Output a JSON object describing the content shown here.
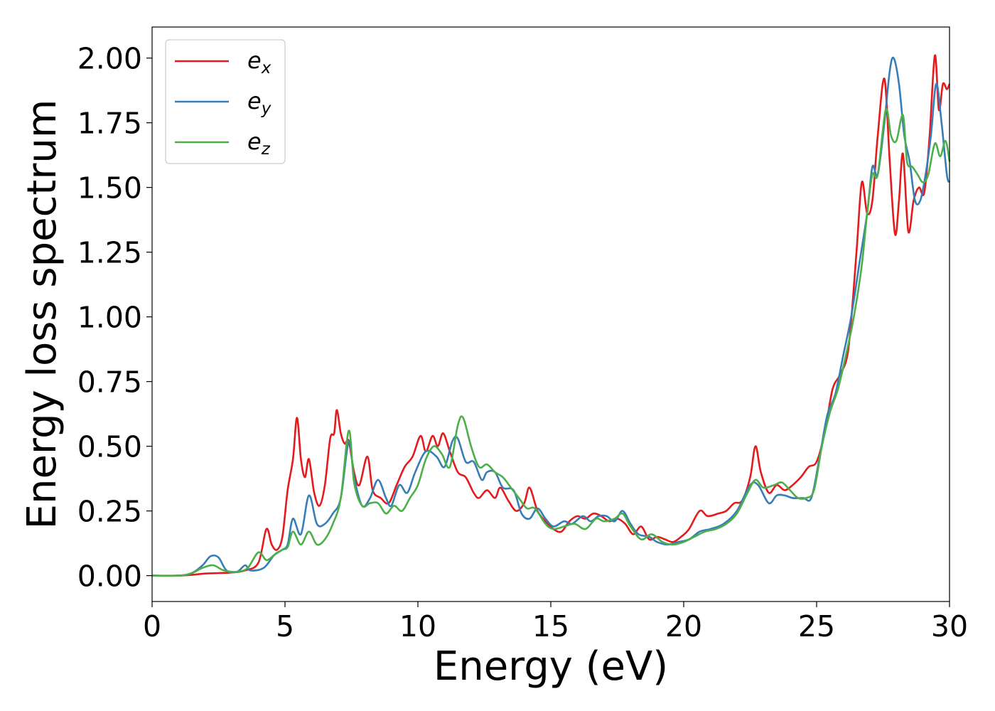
{
  "chart_data": {
    "type": "line",
    "xlabel": "Energy (eV)",
    "ylabel": "Energy loss spectrum",
    "xlim": [
      0,
      30
    ],
    "ylim": [
      -0.1,
      2.12
    ],
    "xticks": [
      "0",
      "5",
      "10",
      "15",
      "20",
      "25",
      "30"
    ],
    "yticks": [
      "0.00",
      "0.25",
      "0.50",
      "0.75",
      "1.00",
      "1.25",
      "1.50",
      "1.75",
      "2.00"
    ],
    "legend_position": "top-left",
    "grid": false,
    "series": [
      {
        "name": "e",
        "subscript": "x",
        "color": "#e41a1c",
        "points": [
          [
            0,
            0
          ],
          [
            1,
            0
          ],
          [
            1.5,
            0.003
          ],
          [
            2,
            0.008
          ],
          [
            2.5,
            0.01
          ],
          [
            3,
            0.012
          ],
          [
            3.5,
            0.02
          ],
          [
            4,
            0.05
          ],
          [
            4.3,
            0.18
          ],
          [
            4.5,
            0.12
          ],
          [
            4.7,
            0.1
          ],
          [
            4.9,
            0.15
          ],
          [
            5.1,
            0.33
          ],
          [
            5.3,
            0.45
          ],
          [
            5.45,
            0.61
          ],
          [
            5.6,
            0.45
          ],
          [
            5.75,
            0.38
          ],
          [
            5.9,
            0.45
          ],
          [
            6.1,
            0.32
          ],
          [
            6.3,
            0.27
          ],
          [
            6.5,
            0.35
          ],
          [
            6.7,
            0.53
          ],
          [
            6.85,
            0.55
          ],
          [
            6.95,
            0.64
          ],
          [
            7.1,
            0.55
          ],
          [
            7.25,
            0.51
          ],
          [
            7.4,
            0.52
          ],
          [
            7.6,
            0.4
          ],
          [
            7.8,
            0.35
          ],
          [
            8.1,
            0.46
          ],
          [
            8.3,
            0.33
          ],
          [
            8.6,
            0.3
          ],
          [
            8.9,
            0.28
          ],
          [
            9.2,
            0.35
          ],
          [
            9.5,
            0.42
          ],
          [
            9.8,
            0.46
          ],
          [
            10.1,
            0.54
          ],
          [
            10.3,
            0.48
          ],
          [
            10.55,
            0.54
          ],
          [
            10.75,
            0.5
          ],
          [
            10.95,
            0.55
          ],
          [
            11.2,
            0.48
          ],
          [
            11.5,
            0.4
          ],
          [
            11.8,
            0.38
          ],
          [
            12.1,
            0.32
          ],
          [
            12.3,
            0.3
          ],
          [
            12.6,
            0.33
          ],
          [
            12.9,
            0.3
          ],
          [
            13.1,
            0.34
          ],
          [
            13.4,
            0.29
          ],
          [
            13.7,
            0.25
          ],
          [
            14,
            0.28
          ],
          [
            14.2,
            0.34
          ],
          [
            14.5,
            0.25
          ],
          [
            14.8,
            0.21
          ],
          [
            15.1,
            0.18
          ],
          [
            15.4,
            0.17
          ],
          [
            15.7,
            0.21
          ],
          [
            16,
            0.23
          ],
          [
            16.3,
            0.22
          ],
          [
            16.6,
            0.24
          ],
          [
            16.9,
            0.23
          ],
          [
            17.2,
            0.21
          ],
          [
            17.5,
            0.22
          ],
          [
            17.8,
            0.2
          ],
          [
            18.1,
            0.16
          ],
          [
            18.4,
            0.19
          ],
          [
            18.7,
            0.14
          ],
          [
            19.0,
            0.15
          ],
          [
            19.3,
            0.14
          ],
          [
            19.6,
            0.13
          ],
          [
            19.9,
            0.15
          ],
          [
            20.2,
            0.18
          ],
          [
            20.6,
            0.25
          ],
          [
            20.9,
            0.23
          ],
          [
            21.3,
            0.24
          ],
          [
            21.6,
            0.25
          ],
          [
            21.9,
            0.28
          ],
          [
            22.2,
            0.29
          ],
          [
            22.5,
            0.38
          ],
          [
            22.7,
            0.5
          ],
          [
            22.9,
            0.4
          ],
          [
            23.2,
            0.32
          ],
          [
            23.5,
            0.35
          ],
          [
            23.8,
            0.33
          ],
          [
            24.1,
            0.35
          ],
          [
            24.4,
            0.38
          ],
          [
            24.7,
            0.42
          ],
          [
            25.0,
            0.44
          ],
          [
            25.3,
            0.55
          ],
          [
            25.6,
            0.72
          ],
          [
            25.9,
            0.78
          ],
          [
            26.2,
            0.88
          ],
          [
            26.5,
            1.25
          ],
          [
            26.7,
            1.52
          ],
          [
            26.9,
            1.4
          ],
          [
            27.1,
            1.45
          ],
          [
            27.3,
            1.7
          ],
          [
            27.55,
            1.92
          ],
          [
            27.75,
            1.6
          ],
          [
            27.95,
            1.32
          ],
          [
            28.1,
            1.45
          ],
          [
            28.25,
            1.63
          ],
          [
            28.45,
            1.33
          ],
          [
            28.65,
            1.45
          ],
          [
            28.85,
            1.5
          ],
          [
            29.05,
            1.48
          ],
          [
            29.25,
            1.7
          ],
          [
            29.45,
            2.01
          ],
          [
            29.6,
            1.8
          ],
          [
            29.75,
            1.9
          ],
          [
            29.9,
            1.88
          ],
          [
            30,
            1.9
          ]
        ]
      },
      {
        "name": "e",
        "subscript": "y",
        "color": "#377eb8",
        "points": [
          [
            0,
            0
          ],
          [
            1,
            0
          ],
          [
            1.5,
            0.01
          ],
          [
            1.9,
            0.04
          ],
          [
            2.2,
            0.075
          ],
          [
            2.5,
            0.07
          ],
          [
            2.8,
            0.02
          ],
          [
            3.2,
            0.015
          ],
          [
            3.5,
            0.04
          ],
          [
            3.7,
            0.02
          ],
          [
            4.2,
            0.03
          ],
          [
            4.6,
            0.08
          ],
          [
            4.9,
            0.1
          ],
          [
            5.1,
            0.12
          ],
          [
            5.3,
            0.22
          ],
          [
            5.6,
            0.16
          ],
          [
            5.9,
            0.31
          ],
          [
            6.2,
            0.2
          ],
          [
            6.5,
            0.2
          ],
          [
            6.8,
            0.24
          ],
          [
            7.1,
            0.3
          ],
          [
            7.4,
            0.52
          ],
          [
            7.6,
            0.38
          ],
          [
            7.9,
            0.27
          ],
          [
            8.2,
            0.3
          ],
          [
            8.5,
            0.37
          ],
          [
            8.8,
            0.3
          ],
          [
            9.0,
            0.27
          ],
          [
            9.3,
            0.35
          ],
          [
            9.6,
            0.32
          ],
          [
            9.9,
            0.4
          ],
          [
            10.3,
            0.48
          ],
          [
            10.7,
            0.46
          ],
          [
            11.0,
            0.42
          ],
          [
            11.3,
            0.52
          ],
          [
            11.5,
            0.53
          ],
          [
            11.8,
            0.44
          ],
          [
            12.1,
            0.44
          ],
          [
            12.4,
            0.37
          ],
          [
            12.6,
            0.4
          ],
          [
            12.9,
            0.4
          ],
          [
            13.2,
            0.34
          ],
          [
            13.6,
            0.33
          ],
          [
            13.9,
            0.24
          ],
          [
            14.2,
            0.22
          ],
          [
            14.5,
            0.26
          ],
          [
            14.8,
            0.22
          ],
          [
            15.1,
            0.19
          ],
          [
            15.5,
            0.21
          ],
          [
            15.8,
            0.2
          ],
          [
            16.2,
            0.23
          ],
          [
            16.5,
            0.21
          ],
          [
            16.8,
            0.23
          ],
          [
            17.1,
            0.23
          ],
          [
            17.4,
            0.21
          ],
          [
            17.7,
            0.25
          ],
          [
            18.0,
            0.2
          ],
          [
            18.3,
            0.16
          ],
          [
            18.7,
            0.15
          ],
          [
            19.0,
            0.13
          ],
          [
            19.4,
            0.12
          ],
          [
            19.8,
            0.13
          ],
          [
            20.2,
            0.14
          ],
          [
            20.6,
            0.17
          ],
          [
            21.0,
            0.18
          ],
          [
            21.5,
            0.2
          ],
          [
            22.0,
            0.25
          ],
          [
            22.5,
            0.35
          ],
          [
            22.8,
            0.35
          ],
          [
            23.2,
            0.28
          ],
          [
            23.5,
            0.31
          ],
          [
            23.8,
            0.31
          ],
          [
            24.1,
            0.3
          ],
          [
            24.5,
            0.3
          ],
          [
            24.8,
            0.3
          ],
          [
            25.1,
            0.45
          ],
          [
            25.4,
            0.62
          ],
          [
            25.7,
            0.7
          ],
          [
            26.0,
            0.85
          ],
          [
            26.3,
            1.0
          ],
          [
            26.6,
            1.2
          ],
          [
            26.9,
            1.4
          ],
          [
            27.1,
            1.58
          ],
          [
            27.3,
            1.55
          ],
          [
            27.55,
            1.75
          ],
          [
            27.75,
            1.95
          ],
          [
            27.9,
            2.0
          ],
          [
            28.1,
            1.9
          ],
          [
            28.3,
            1.7
          ],
          [
            28.5,
            1.6
          ],
          [
            28.7,
            1.45
          ],
          [
            28.9,
            1.45
          ],
          [
            29.1,
            1.55
          ],
          [
            29.3,
            1.7
          ],
          [
            29.5,
            1.9
          ],
          [
            29.7,
            1.75
          ],
          [
            29.9,
            1.55
          ],
          [
            30,
            1.52
          ]
        ]
      },
      {
        "name": "e",
        "subscript": "z",
        "color": "#4daf4a",
        "points": [
          [
            0,
            0
          ],
          [
            1,
            0
          ],
          [
            1.5,
            0.01
          ],
          [
            1.9,
            0.03
          ],
          [
            2.3,
            0.04
          ],
          [
            2.7,
            0.02
          ],
          [
            3.2,
            0.015
          ],
          [
            3.6,
            0.03
          ],
          [
            4.0,
            0.09
          ],
          [
            4.3,
            0.06
          ],
          [
            4.6,
            0.08
          ],
          [
            4.9,
            0.1
          ],
          [
            5.1,
            0.11
          ],
          [
            5.3,
            0.17
          ],
          [
            5.6,
            0.12
          ],
          [
            5.9,
            0.17
          ],
          [
            6.2,
            0.12
          ],
          [
            6.5,
            0.14
          ],
          [
            6.8,
            0.2
          ],
          [
            7.1,
            0.3
          ],
          [
            7.4,
            0.56
          ],
          [
            7.6,
            0.36
          ],
          [
            7.9,
            0.27
          ],
          [
            8.2,
            0.28
          ],
          [
            8.5,
            0.28
          ],
          [
            8.8,
            0.24
          ],
          [
            9.1,
            0.27
          ],
          [
            9.4,
            0.25
          ],
          [
            9.7,
            0.3
          ],
          [
            10.0,
            0.35
          ],
          [
            10.3,
            0.45
          ],
          [
            10.6,
            0.5
          ],
          [
            10.9,
            0.47
          ],
          [
            11.2,
            0.42
          ],
          [
            11.5,
            0.58
          ],
          [
            11.7,
            0.61
          ],
          [
            12.0,
            0.5
          ],
          [
            12.3,
            0.42
          ],
          [
            12.6,
            0.43
          ],
          [
            12.9,
            0.4
          ],
          [
            13.2,
            0.38
          ],
          [
            13.5,
            0.34
          ],
          [
            13.8,
            0.3
          ],
          [
            14.1,
            0.26
          ],
          [
            14.4,
            0.26
          ],
          [
            14.8,
            0.2
          ],
          [
            15.1,
            0.18
          ],
          [
            15.5,
            0.19
          ],
          [
            15.9,
            0.2
          ],
          [
            16.3,
            0.18
          ],
          [
            16.7,
            0.22
          ],
          [
            17.0,
            0.21
          ],
          [
            17.4,
            0.22
          ],
          [
            17.7,
            0.24
          ],
          [
            18.0,
            0.19
          ],
          [
            18.4,
            0.14
          ],
          [
            18.8,
            0.16
          ],
          [
            19.2,
            0.13
          ],
          [
            19.6,
            0.12
          ],
          [
            20.0,
            0.13
          ],
          [
            20.4,
            0.15
          ],
          [
            20.8,
            0.17
          ],
          [
            21.2,
            0.18
          ],
          [
            21.6,
            0.2
          ],
          [
            22.0,
            0.24
          ],
          [
            22.4,
            0.32
          ],
          [
            22.7,
            0.37
          ],
          [
            23.0,
            0.34
          ],
          [
            23.4,
            0.35
          ],
          [
            23.7,
            0.36
          ],
          [
            24.0,
            0.33
          ],
          [
            24.3,
            0.3
          ],
          [
            24.6,
            0.3
          ],
          [
            24.9,
            0.33
          ],
          [
            25.2,
            0.5
          ],
          [
            25.5,
            0.63
          ],
          [
            25.8,
            0.72
          ],
          [
            26.1,
            0.85
          ],
          [
            26.4,
            1.0
          ],
          [
            26.7,
            1.2
          ],
          [
            26.9,
            1.4
          ],
          [
            27.1,
            1.55
          ],
          [
            27.3,
            1.55
          ],
          [
            27.6,
            1.8
          ],
          [
            27.8,
            1.7
          ],
          [
            28.0,
            1.68
          ],
          [
            28.25,
            1.78
          ],
          [
            28.4,
            1.6
          ],
          [
            28.6,
            1.58
          ],
          [
            28.8,
            1.55
          ],
          [
            29.0,
            1.52
          ],
          [
            29.2,
            1.55
          ],
          [
            29.45,
            1.67
          ],
          [
            29.65,
            1.62
          ],
          [
            29.85,
            1.68
          ],
          [
            30,
            1.6
          ]
        ]
      }
    ]
  }
}
